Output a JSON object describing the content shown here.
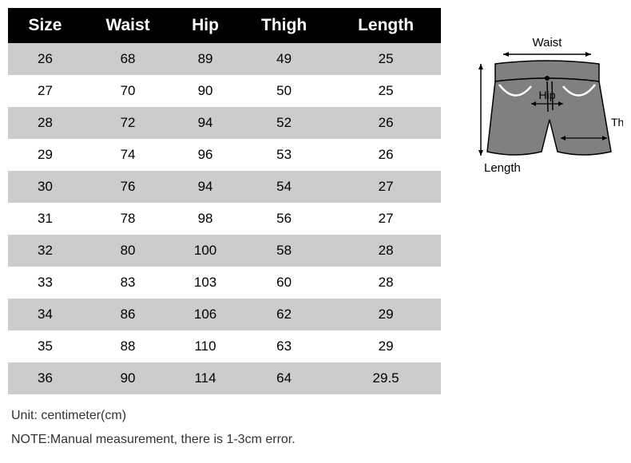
{
  "table": {
    "columns": [
      "Size",
      "Waist",
      "Hip",
      "Thigh",
      "Length"
    ],
    "rows": [
      [
        "26",
        "68",
        "89",
        "49",
        "25"
      ],
      [
        "27",
        "70",
        "90",
        "50",
        "25"
      ],
      [
        "28",
        "72",
        "94",
        "52",
        "26"
      ],
      [
        "29",
        "74",
        "96",
        "53",
        "26"
      ],
      [
        "30",
        "76",
        "94",
        "54",
        "27"
      ],
      [
        "31",
        "78",
        "98",
        "56",
        "27"
      ],
      [
        "32",
        "80",
        "100",
        "58",
        "28"
      ],
      [
        "33",
        "83",
        "103",
        "60",
        "28"
      ],
      [
        "34",
        "86",
        "106",
        "62",
        "29"
      ],
      [
        "35",
        "88",
        "110",
        "63",
        "29"
      ],
      [
        "36",
        "90",
        "114",
        "64",
        "29.5"
      ]
    ],
    "header_bg": "#000000",
    "header_fg": "#ffffff",
    "row_odd_bg": "#cccccc",
    "row_even_bg": "#ffffff",
    "header_fontsize": 21,
    "cell_fontsize": 17
  },
  "diagram": {
    "labels": {
      "waist": "Waist",
      "hip": "Hip",
      "thigh": "Thigh",
      "length": "Length"
    },
    "colors": {
      "fill": "#808080",
      "stroke": "#000000",
      "pocket_line": "#ffffff"
    }
  },
  "footer": {
    "unit": "Unit: centimeter(cm)",
    "note": "NOTE:Manual measurement, there is 1-3cm error."
  }
}
